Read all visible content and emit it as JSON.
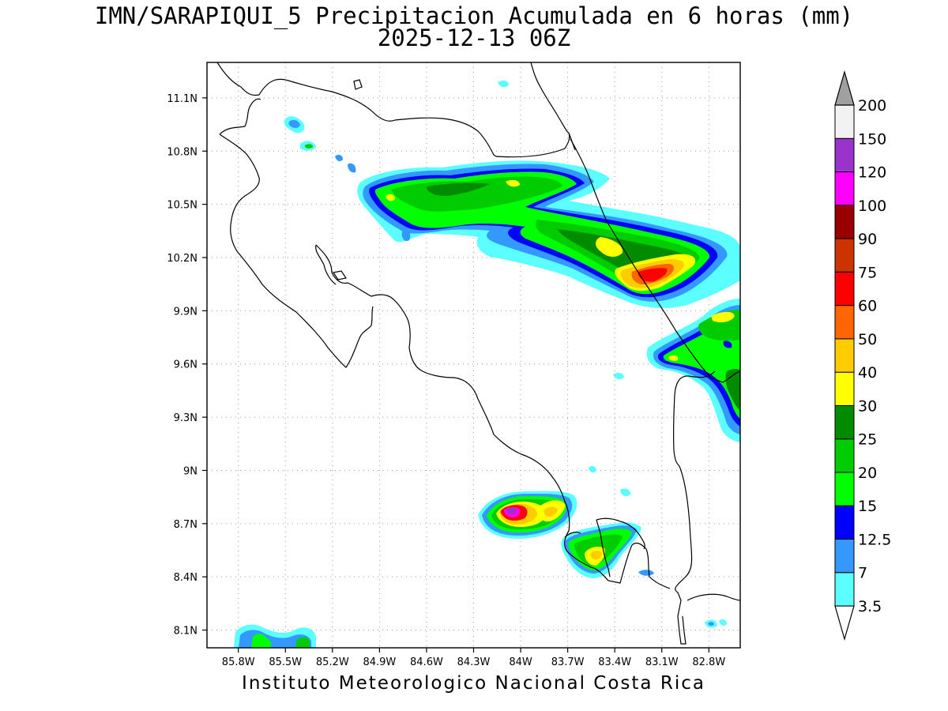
{
  "title": {
    "line1": "IMN/SARAPIQUI_5 Precipitacion Acumulada en 6 horas (mm)",
    "line2": "2025-12-13 06Z"
  },
  "footer": "Instituto Meteorologico Nacional Costa Rica",
  "map": {
    "lon_range": [
      -86.0,
      -82.6
    ],
    "lat_range": [
      8.0,
      11.3
    ],
    "x_ticks": [
      "85.8W",
      "85.5W",
      "85.2W",
      "84.9W",
      "84.6W",
      "84.3W",
      "84W",
      "83.7W",
      "83.4W",
      "83.1W",
      "82.8W"
    ],
    "y_ticks": [
      "11.1N",
      "10.8N",
      "10.5N",
      "10.2N",
      "9.9N",
      "9.6N",
      "9.3N",
      "9N",
      "8.7N",
      "8.4N",
      "8.1N"
    ],
    "grid": "dotted"
  },
  "colorbar": {
    "levels": [
      "3.5",
      "7",
      "12.5",
      "15",
      "20",
      "25",
      "30",
      "40",
      "50",
      "60",
      "75",
      "90",
      "100",
      "120",
      "150",
      "200"
    ],
    "colors": [
      "#5cffff",
      "#3399ff",
      "#0000ff",
      "#00ff00",
      "#00cc00",
      "#008c00",
      "#ffff00",
      "#ffcc00",
      "#ff6600",
      "#ff0000",
      "#cc3300",
      "#990000",
      "#ff00ff",
      "#9933cc",
      "#f2f2f2",
      "#a0a0a0"
    ]
  }
}
